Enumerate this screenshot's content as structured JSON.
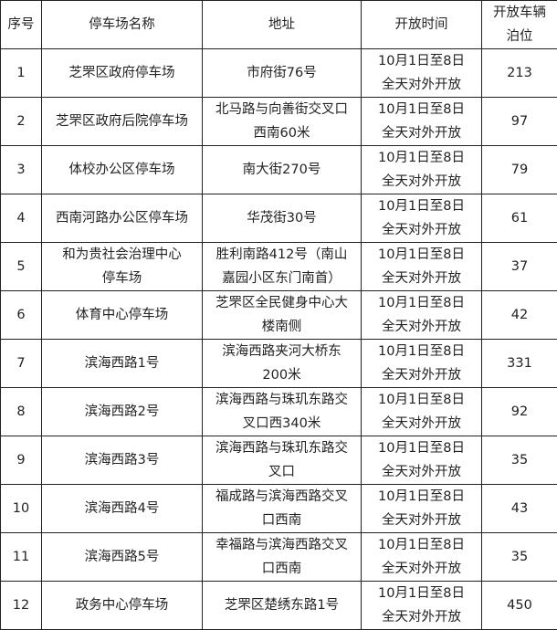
{
  "headers": [
    "序号",
    "停车场名称",
    "地址",
    "开放时间",
    "开放车辆\n泊位"
  ],
  "rows": [
    {
      "no": "1",
      "name": "芝罘区政府停车场",
      "address": "市府街76号",
      "time": "10月1日至8日\n全天对外开放",
      "spaces": "213"
    },
    {
      "no": "2",
      "name": "芝罘区政府后院停车场",
      "address": "北马路与向善街交叉口\n西南60米",
      "time": "10月1日至8日\n全天对外开放",
      "spaces": "97"
    },
    {
      "no": "3",
      "name": "体校办公区停车场",
      "address": "南大街270号",
      "time": "10月1日至8日\n全天对外开放",
      "spaces": "79"
    },
    {
      "no": "4",
      "name": "西南河路办公区停车场",
      "address": "华茂街30号",
      "time": "10月1日至8日\n全天对外开放",
      "spaces": "61"
    },
    {
      "no": "5",
      "name": "和为贵社会治理中心\n停车场",
      "address": "胜利南路412号（南山\n嘉园小区东门南首）",
      "time": "10月1日至8日\n全天对外开放",
      "spaces": "37"
    },
    {
      "no": "6",
      "name": "体育中心停车场",
      "address": "芝罘区全民健身中心大\n楼南侧",
      "time": "10月1日至8日\n全天对外开放",
      "spaces": "42"
    },
    {
      "no": "7",
      "name": "滨海西路1号",
      "address": "滨海西路夹河大桥东\n200米",
      "time": "10月1日至8日\n全天对外开放",
      "spaces": "331"
    },
    {
      "no": "8",
      "name": "滨海西路2号",
      "address": "滨海西路与珠玑东路交\n叉口西340米",
      "time": "10月1日至8日\n全天对外开放",
      "spaces": "92"
    },
    {
      "no": "9",
      "name": "滨海西路3号",
      "address": "滨海西路与珠玑东路交\n叉口",
      "time": "10月1日至8日\n全天对外开放",
      "spaces": "35"
    },
    {
      "no": "10",
      "name": "滨海西路4号",
      "address": "福成路与滨海西路交叉\n口西南",
      "time": "10月1日至8日\n全天对外开放",
      "spaces": "43"
    },
    {
      "no": "11",
      "name": "滨海西路5号",
      "address": "幸福路与滨海西路交叉\n口西南",
      "time": "10月1日至8日\n全天对外开放",
      "spaces": "35"
    },
    {
      "no": "12",
      "name": "政务中心停车场",
      "address": "芝罘区楚绣东路1号",
      "time": "10月1日至8日\n全天对外开放",
      "spaces": "450"
    }
  ]
}
